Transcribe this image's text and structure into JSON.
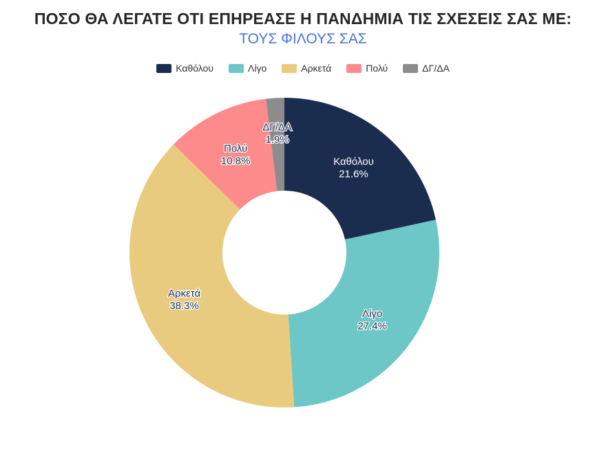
{
  "chart_data": {
    "type": "pie",
    "title": "ΠΟΣΟ ΘΑ ΛΕΓΑΤΕ ΟΤΙ ΕΠΗΡΕΑΣΕ Η ΠΑΝΔΗΜΙΑ ΤΙΣ ΣΧΕΣΕΙΣ ΣΑΣ ΜΕ:",
    "subtitle": "ΤΟΥΣ ΦΙΛΟΥΣ ΣΑΣ",
    "donut": true,
    "legend_position": "top",
    "categories": [
      "Καθόλου",
      "Λίγο",
      "Αρκετά",
      "Πολύ",
      "ΔΓ/ΔΑ"
    ],
    "values": [
      21.6,
      27.4,
      38.3,
      10.8,
      1.9
    ],
    "value_labels": [
      "21.6%",
      "27.4%",
      "38.3%",
      "10.8%",
      "1.9%"
    ],
    "colors": [
      "#1b2d4f",
      "#6cc7c6",
      "#e9cb80",
      "#fd8b8b",
      "#8c8c8c"
    ],
    "label_colors": [
      "#ffffff",
      "#1b2d4f",
      "#1b2d4f",
      "#1b2d4f",
      "#1b2d4f"
    ]
  }
}
